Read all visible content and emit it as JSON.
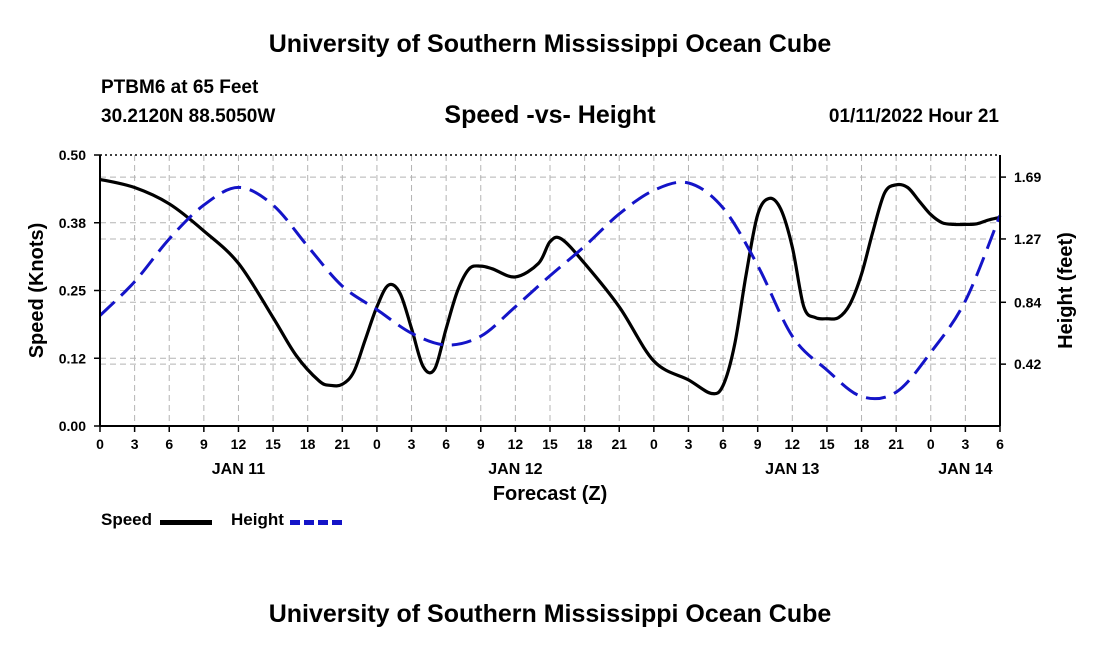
{
  "page": {
    "title_top": "University of Southern Mississippi Ocean Cube",
    "title_bottom": "University of Southern Mississippi Ocean Cube",
    "station": "PTBM6 at 65 Feet",
    "coords": "30.2120N  88.5050W",
    "chart_title": "Speed -vs- Height",
    "datetime": "01/11/2022 Hour 21"
  },
  "legend": {
    "speed_label": "Speed",
    "height_label": "Height"
  },
  "colors": {
    "speed": "#000000",
    "height": "#1414c8",
    "grid": "#b4b4b4"
  },
  "chart_data": {
    "type": "line",
    "title": "Speed -vs- Height",
    "xlabel": "Forecast (Z)",
    "ylabel": "Speed (Knots)",
    "y2label": "Height (feet)",
    "xlim": [
      0,
      78
    ],
    "ylim": [
      0,
      0.5
    ],
    "y2lim": [
      0,
      1.84
    ],
    "x_ticks": [
      0,
      3,
      6,
      9,
      12,
      15,
      18,
      21,
      24,
      27,
      30,
      33,
      36,
      39,
      42,
      45,
      48,
      51,
      54,
      57,
      60,
      63,
      66,
      69,
      72,
      75,
      78
    ],
    "x_tick_labels": [
      "0",
      "3",
      "6",
      "9",
      "12",
      "15",
      "18",
      "21",
      "0",
      "3",
      "6",
      "9",
      "12",
      "15",
      "18",
      "21",
      "0",
      "3",
      "6",
      "9",
      "12",
      "15",
      "18",
      "21",
      "0",
      "3",
      "6"
    ],
    "date_labels": [
      {
        "x": 12,
        "label": "JAN 11"
      },
      {
        "x": 36,
        "label": "JAN 12"
      },
      {
        "x": 60,
        "label": "JAN 13"
      },
      {
        "x": 75,
        "label": "JAN 14"
      }
    ],
    "y_ticks": [
      0,
      0.125,
      0.25,
      0.375,
      0.5
    ],
    "y_tick_labels": [
      "0.00",
      "0.12",
      "0.25",
      "0.38",
      "0.50"
    ],
    "y2_ticks": [
      0.42,
      0.84,
      1.27,
      1.69
    ],
    "y2_tick_labels": [
      "0.42",
      "0.84",
      "1.27",
      "1.69"
    ],
    "grid": true,
    "series": [
      {
        "name": "Speed",
        "axis": "left",
        "style": "solid",
        "x": [
          0,
          3,
          6,
          9,
          12,
          15,
          17,
          19,
          20,
          21,
          22,
          23,
          24,
          25,
          26,
          27,
          28,
          29,
          30,
          31,
          32,
          33,
          34,
          36,
          38,
          39,
          40,
          42,
          45,
          48,
          51,
          53,
          54,
          55,
          56,
          57,
          58,
          59,
          60,
          61,
          62,
          63,
          64,
          65,
          66,
          67,
          68,
          69,
          70,
          71,
          72,
          73,
          74,
          75,
          76,
          77,
          78
        ],
        "values": [
          0.455,
          0.44,
          0.41,
          0.36,
          0.3,
          0.2,
          0.13,
          0.083,
          0.075,
          0.077,
          0.1,
          0.16,
          0.22,
          0.26,
          0.245,
          0.18,
          0.11,
          0.105,
          0.18,
          0.25,
          0.29,
          0.295,
          0.29,
          0.275,
          0.3,
          0.34,
          0.345,
          0.3,
          0.22,
          0.12,
          0.085,
          0.06,
          0.075,
          0.15,
          0.28,
          0.39,
          0.42,
          0.4,
          0.33,
          0.22,
          0.2,
          0.198,
          0.2,
          0.225,
          0.28,
          0.36,
          0.43,
          0.445,
          0.44,
          0.415,
          0.39,
          0.375,
          0.372,
          0.372,
          0.373,
          0.38,
          0.385
        ]
      },
      {
        "name": "Height",
        "axis": "right",
        "style": "dashed",
        "x": [
          0,
          3,
          6,
          9,
          12,
          15,
          18,
          21,
          24,
          27,
          30,
          33,
          36,
          39,
          42,
          45,
          48,
          51,
          54,
          57,
          60,
          63,
          66,
          69,
          72,
          75,
          78
        ],
        "values": [
          0.75,
          0.98,
          1.27,
          1.5,
          1.62,
          1.5,
          1.22,
          0.95,
          0.79,
          0.63,
          0.55,
          0.61,
          0.81,
          1.02,
          1.22,
          1.44,
          1.6,
          1.65,
          1.48,
          1.09,
          0.61,
          0.38,
          0.2,
          0.23,
          0.5,
          0.85,
          1.43
        ]
      }
    ]
  }
}
